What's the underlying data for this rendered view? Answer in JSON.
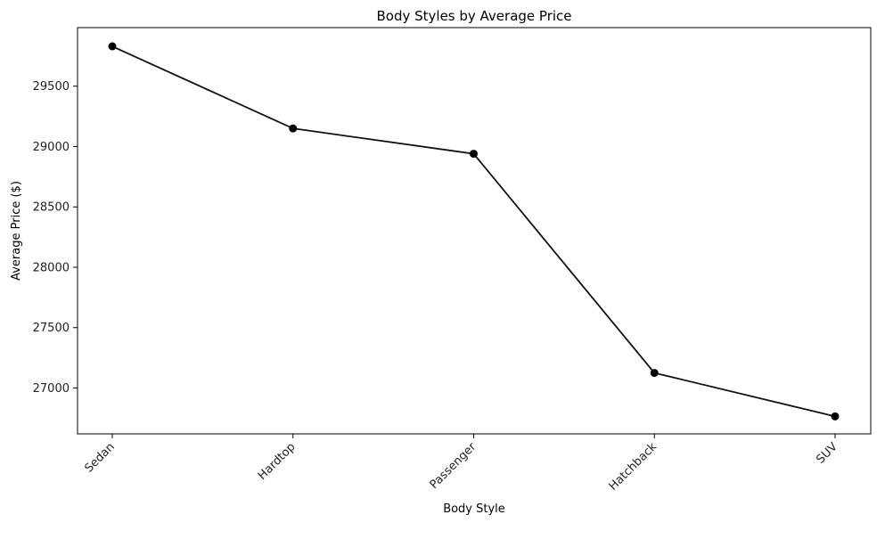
{
  "chart_data": {
    "type": "line",
    "title": "Body Styles by Average Price",
    "xlabel": "Body Style",
    "ylabel": "Average Price ($)",
    "categories": [
      "Sedan",
      "Hardtop",
      "Passenger",
      "Hatchback",
      "SUV"
    ],
    "values": [
      29830,
      29150,
      28940,
      27125,
      26765
    ],
    "ylim": [
      26620,
      29985
    ],
    "yticks": [
      27000,
      27500,
      28000,
      28500,
      29000,
      29500
    ],
    "line_color": "#111111",
    "marker_color": "#000000",
    "grid": false,
    "legend": false
  }
}
